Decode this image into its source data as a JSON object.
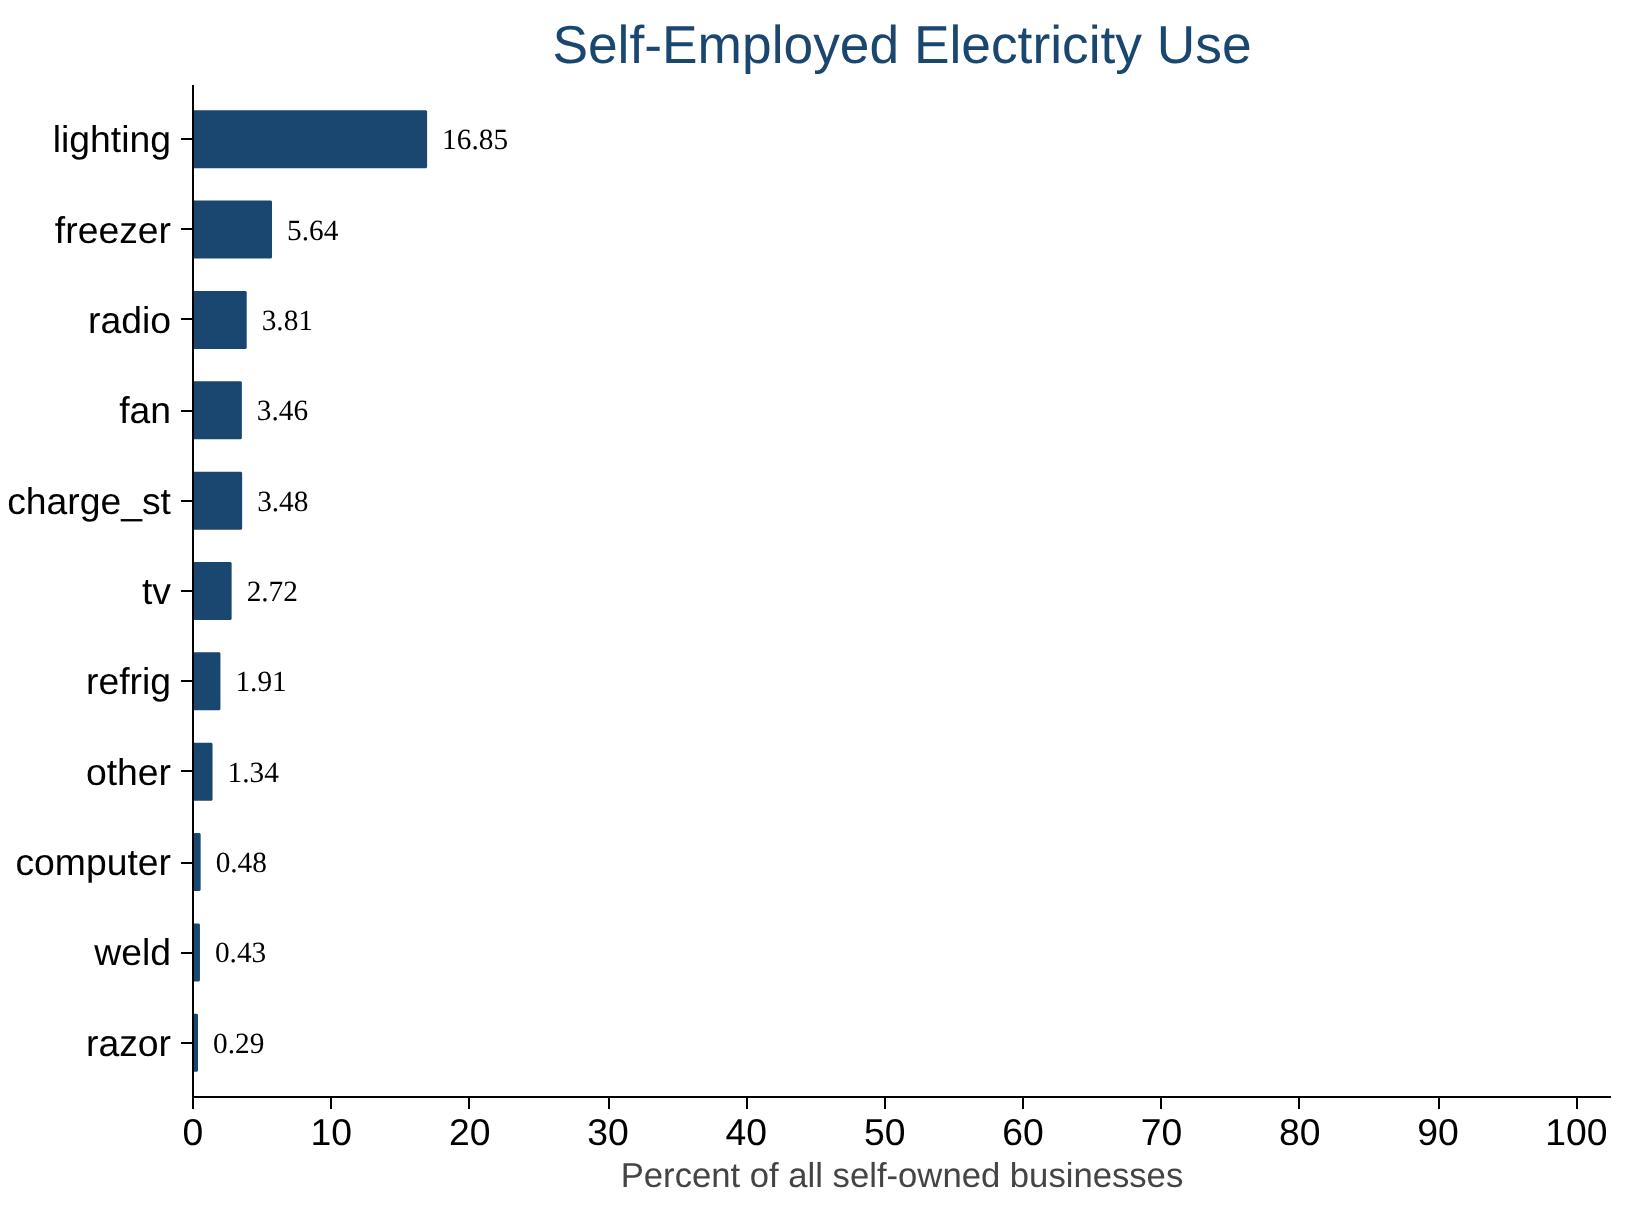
{
  "chart_data": {
    "type": "bar",
    "orientation": "horizontal",
    "title": "Self-Employed Electricity Use",
    "xlabel": "Percent of all self-owned businesses",
    "categories": [
      "lighting",
      "freezer",
      "radio",
      "fan",
      "charge_st",
      "tv",
      "refrig",
      "other",
      "computer",
      "weld",
      "razor"
    ],
    "values": [
      16.85,
      5.64,
      3.81,
      3.46,
      3.48,
      2.72,
      1.91,
      1.34,
      0.48,
      0.43,
      0.29
    ],
    "color": "#1a476f",
    "data_labels": true,
    "grid": false,
    "xlim": [
      0,
      102.5
    ],
    "xticks": [
      0,
      10,
      20,
      30,
      40,
      50,
      60,
      70,
      80,
      90,
      100
    ]
  }
}
